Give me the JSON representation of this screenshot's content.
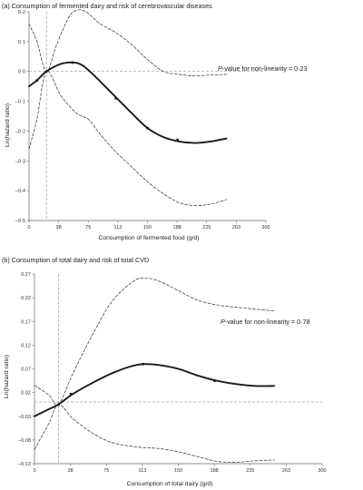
{
  "chart_data": [
    {
      "type": "line",
      "title": "(a)  Consumption of fermented dairy and risk of cerebrovascular diseases",
      "xlabel": "Consumption of fermented food (g/d)",
      "ylabel": "Ln(hazard ratio)",
      "annotation": {
        "prefix": "P",
        "text": "-value for non-linearity = 0·23"
      },
      "xticks": [
        "0",
        "38",
        "75",
        "113",
        "150",
        "188",
        "225",
        "263",
        "300"
      ],
      "yticks": [
        "0·2",
        "0·1",
        "0·0",
        "–0·1",
        "–0·2",
        "–0·3",
        "–0·4",
        "–0·5"
      ],
      "xlim": [
        0,
        300
      ],
      "ylim": [
        -0.5,
        0.2
      ],
      "reference_x": 22,
      "reference_y": 0,
      "grid": false,
      "series": [
        {
          "role": "estimate",
          "x": [
            0,
            10,
            22,
            40,
            55,
            68,
            85,
            100,
            115,
            130,
            150,
            170,
            190,
            210,
            230,
            250
          ],
          "y": [
            -0.05,
            -0.03,
            0.0,
            0.025,
            0.03,
            0.02,
            -0.02,
            -0.06,
            -0.1,
            -0.14,
            -0.19,
            -0.22,
            -0.235,
            -0.24,
            -0.235,
            -0.225
          ]
        },
        {
          "role": "upper-ci",
          "x": [
            0,
            10,
            22,
            35,
            50,
            60,
            72,
            90,
            110,
            130,
            150,
            170,
            190,
            210,
            230,
            250
          ],
          "y": [
            0.16,
            0.1,
            0.0,
            0.09,
            0.18,
            0.205,
            0.2,
            0.16,
            0.13,
            0.09,
            0.04,
            0.0,
            -0.01,
            -0.015,
            -0.012,
            -0.01
          ]
        },
        {
          "role": "lower-ci",
          "x": [
            0,
            10,
            22,
            40,
            60,
            75,
            90,
            110,
            130,
            150,
            170,
            190,
            210,
            230,
            250
          ],
          "y": [
            -0.26,
            -0.16,
            0.0,
            -0.08,
            -0.14,
            -0.16,
            -0.21,
            -0.27,
            -0.32,
            -0.37,
            -0.41,
            -0.44,
            -0.45,
            -0.445,
            -0.43
          ]
        }
      ],
      "markers": {
        "x": [
          10,
          22,
          55,
          110,
          150,
          188
        ],
        "y": [
          -0.03,
          0.0,
          0.03,
          -0.09,
          -0.19,
          -0.23
        ]
      }
    },
    {
      "type": "line",
      "title": "(b)  Consumption of total dairy and risk of total CVD",
      "xlabel": "Consumption of total dairy (g/d)",
      "ylabel": "Ln(hazard ratio)",
      "annotation": {
        "prefix": "P",
        "text": "-value for non-linearity = 0·78"
      },
      "xticks": [
        "0",
        "38",
        "75",
        "113",
        "150",
        "188",
        "225",
        "263",
        "300"
      ],
      "yticks": [
        "0.27",
        "0.22",
        "0.17",
        "0.12",
        "0.07",
        "0.02",
        "–0.03",
        "–0.08",
        "–0.13"
      ],
      "xlim": [
        0,
        300
      ],
      "ylim": [
        -0.13,
        0.27
      ],
      "reference_x": 25,
      "reference_y": 0,
      "grid": false,
      "series": [
        {
          "role": "estimate",
          "x": [
            0,
            15,
            25,
            40,
            60,
            80,
            100,
            113,
            130,
            150,
            170,
            190,
            210,
            230,
            250
          ],
          "y": [
            -0.03,
            -0.015,
            -0.005,
            0.017,
            0.04,
            0.06,
            0.075,
            0.08,
            0.078,
            0.07,
            0.056,
            0.045,
            0.038,
            0.034,
            0.034
          ]
        },
        {
          "role": "upper-ci",
          "x": [
            0,
            15,
            25,
            40,
            60,
            80,
            100,
            113,
            130,
            150,
            170,
            190,
            210,
            230,
            250
          ],
          "y": [
            0.035,
            0.015,
            -0.005,
            0.06,
            0.14,
            0.21,
            0.25,
            0.262,
            0.255,
            0.235,
            0.215,
            0.205,
            0.2,
            0.196,
            0.192
          ]
        },
        {
          "role": "lower-ci",
          "x": [
            0,
            15,
            25,
            40,
            60,
            80,
            100,
            113,
            130,
            150,
            170,
            190,
            210,
            230,
            250
          ],
          "y": [
            -0.1,
            -0.045,
            -0.005,
            -0.035,
            -0.065,
            -0.085,
            -0.093,
            -0.096,
            -0.098,
            -0.105,
            -0.115,
            -0.125,
            -0.127,
            -0.124,
            -0.122
          ]
        }
      ],
      "markers": {
        "x": [
          25,
          38,
          113,
          188
        ],
        "y": [
          -0.005,
          0.017,
          0.08,
          0.045
        ]
      }
    }
  ]
}
